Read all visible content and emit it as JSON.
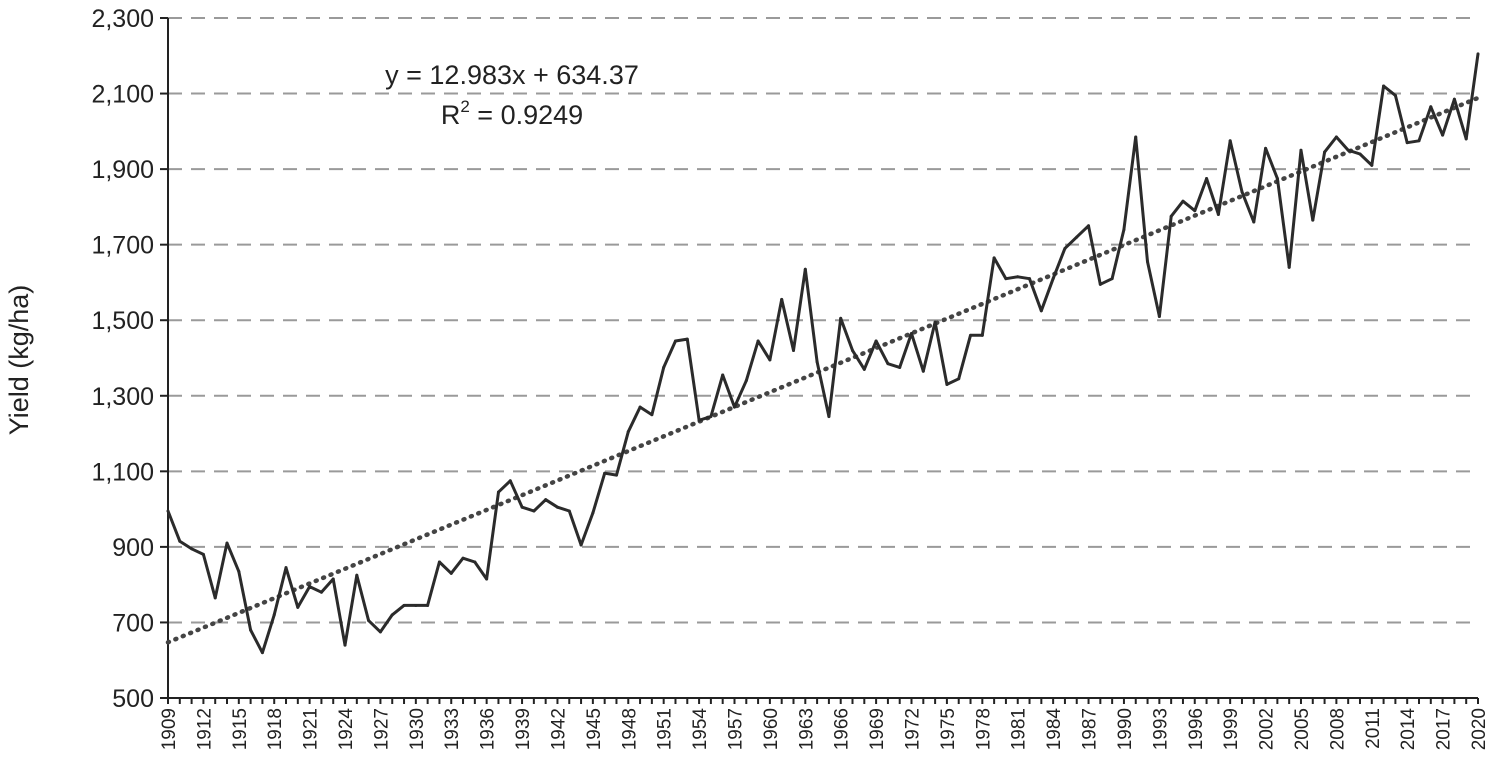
{
  "chart_data": {
    "type": "line",
    "title": "",
    "xlabel": "",
    "ylabel": "Yield (kg/ha)",
    "ylim": [
      500,
      2300
    ],
    "yticks": [
      500,
      700,
      900,
      1100,
      1300,
      1500,
      1700,
      1900,
      2100,
      2300
    ],
    "ytick_labels": [
      "500",
      "700",
      "900",
      "1,100",
      "1,300",
      "1,500",
      "1,700",
      "1,900",
      "2,100",
      "2,300"
    ],
    "xlim": [
      1909,
      2020
    ],
    "xticks": [
      1909,
      1912,
      1915,
      1918,
      1921,
      1924,
      1927,
      1930,
      1933,
      1936,
      1939,
      1942,
      1945,
      1948,
      1951,
      1954,
      1957,
      1960,
      1963,
      1966,
      1969,
      1972,
      1975,
      1978,
      1981,
      1984,
      1987,
      1990,
      1993,
      1996,
      1999,
      2002,
      2005,
      2008,
      2011,
      2014,
      2017,
      2020
    ],
    "grid": true,
    "x": [
      1909,
      1910,
      1911,
      1912,
      1913,
      1914,
      1915,
      1916,
      1917,
      1918,
      1919,
      1920,
      1921,
      1922,
      1923,
      1924,
      1925,
      1926,
      1927,
      1928,
      1929,
      1930,
      1931,
      1932,
      1933,
      1934,
      1935,
      1936,
      1937,
      1938,
      1939,
      1940,
      1941,
      1942,
      1943,
      1944,
      1945,
      1946,
      1947,
      1948,
      1949,
      1950,
      1951,
      1952,
      1953,
      1954,
      1955,
      1956,
      1957,
      1958,
      1959,
      1960,
      1961,
      1962,
      1963,
      1964,
      1965,
      1966,
      1967,
      1968,
      1969,
      1970,
      1971,
      1972,
      1973,
      1974,
      1975,
      1976,
      1977,
      1978,
      1979,
      1980,
      1981,
      1982,
      1983,
      1984,
      1985,
      1986,
      1987,
      1988,
      1989,
      1990,
      1991,
      1992,
      1993,
      1994,
      1995,
      1996,
      1997,
      1998,
      1999,
      2000,
      2001,
      2002,
      2003,
      2004,
      2005,
      2006,
      2007,
      2008,
      2009,
      2010,
      2011,
      2012,
      2013,
      2014,
      2015,
      2016,
      2017,
      2018,
      2019,
      2020
    ],
    "series": [
      {
        "values": [
          995,
          915,
          895,
          880,
          765,
          910,
          835,
          680,
          620,
          720,
          845,
          740,
          795,
          780,
          815,
          640,
          825,
          705,
          675,
          720,
          745,
          745,
          745,
          860,
          830,
          870,
          860,
          815,
          1045,
          1075,
          1005,
          995,
          1025,
          1005,
          995,
          905,
          990,
          1095,
          1090,
          1205,
          1270,
          1250,
          1375,
          1445,
          1450,
          1235,
          1245,
          1355,
          1270,
          1340,
          1445,
          1395,
          1555,
          1420,
          1635,
          1390,
          1245,
          1505,
          1420,
          1370,
          1445,
          1385,
          1375,
          1465,
          1365,
          1495,
          1330,
          1345,
          1460,
          1460,
          1665,
          1610,
          1615,
          1610,
          1525,
          1610,
          1690,
          1720,
          1750,
          1595,
          1610,
          1740,
          1985,
          1655,
          1510,
          1775,
          1815,
          1790,
          1875,
          1780,
          1975,
          1840,
          1760,
          1955,
          1875,
          1640,
          1950,
          1765,
          1945,
          1985,
          1950,
          1940,
          1910,
          2120,
          2095,
          1970,
          1975,
          2065,
          1990,
          2085,
          1980,
          2205
        ]
      }
    ],
    "trendline": {
      "slope": 12.983,
      "intercept": 634.37,
      "equation": "y = 12.983x + 634.37",
      "r2_prefix": "R",
      "r2_sup": "2",
      "r2_value": " = 0.9249"
    }
  }
}
